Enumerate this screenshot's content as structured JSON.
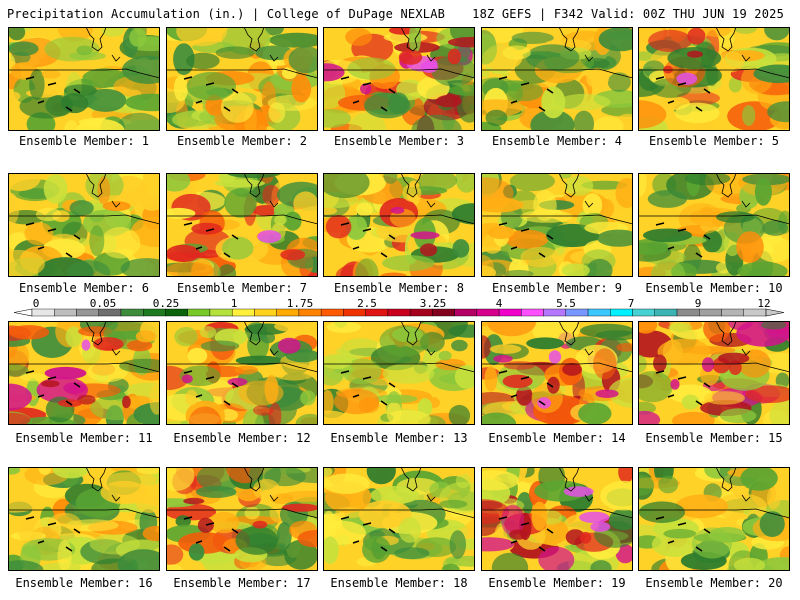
{
  "header": {
    "left_title": "Precipitation Accumulation (in.) | College of DuPage NEXLAB",
    "right_title": "18Z GEFS | F342 Valid: 00Z THU JUN 19 2025"
  },
  "panels": [
    {
      "label": "Ensemble Member: 1"
    },
    {
      "label": "Ensemble Member: 2"
    },
    {
      "label": "Ensemble Member: 3"
    },
    {
      "label": "Ensemble Member: 4"
    },
    {
      "label": "Ensemble Member: 5"
    },
    {
      "label": "Ensemble Member: 6"
    },
    {
      "label": "Ensemble Member: 7"
    },
    {
      "label": "Ensemble Member: 8"
    },
    {
      "label": "Ensemble Member: 9"
    },
    {
      "label": "Ensemble Member: 10"
    },
    {
      "label": "Ensemble Member: 11"
    },
    {
      "label": "Ensemble Member: 12"
    },
    {
      "label": "Ensemble Member: 13"
    },
    {
      "label": "Ensemble Member: 14"
    },
    {
      "label": "Ensemble Member: 15"
    },
    {
      "label": "Ensemble Member: 16"
    },
    {
      "label": "Ensemble Member: 17"
    },
    {
      "label": "Ensemble Member: 18"
    },
    {
      "label": "Ensemble Member: 19"
    },
    {
      "label": "Ensemble Member: 20"
    }
  ],
  "colorbar": {
    "tick_labels": [
      "0",
      "0.05",
      "0.25",
      "1",
      "1.75",
      "2.5",
      "3.25",
      "4",
      "5.5",
      "7",
      "9",
      "12"
    ],
    "colors": [
      "#e6e6e6",
      "#bdbdbd",
      "#969696",
      "#6f6f6f",
      "#3c8c3c",
      "#1e7a1e",
      "#0a640a",
      "#78c828",
      "#b4e13c",
      "#fff03c",
      "#ffd21e",
      "#ffaa00",
      "#ff8200",
      "#ff5a00",
      "#f03200",
      "#e11414",
      "#c8001e",
      "#a5001e",
      "#82001e",
      "#b40064",
      "#d7008c",
      "#f000c8",
      "#ff50ff",
      "#b478ff",
      "#7896ff",
      "#3cc8ff",
      "#00f0ff",
      "#46d2d2",
      "#3cb4b4",
      "#8c8c8c",
      "#a0a0a0",
      "#b4b4b4",
      "#c8c8c8"
    ]
  }
}
